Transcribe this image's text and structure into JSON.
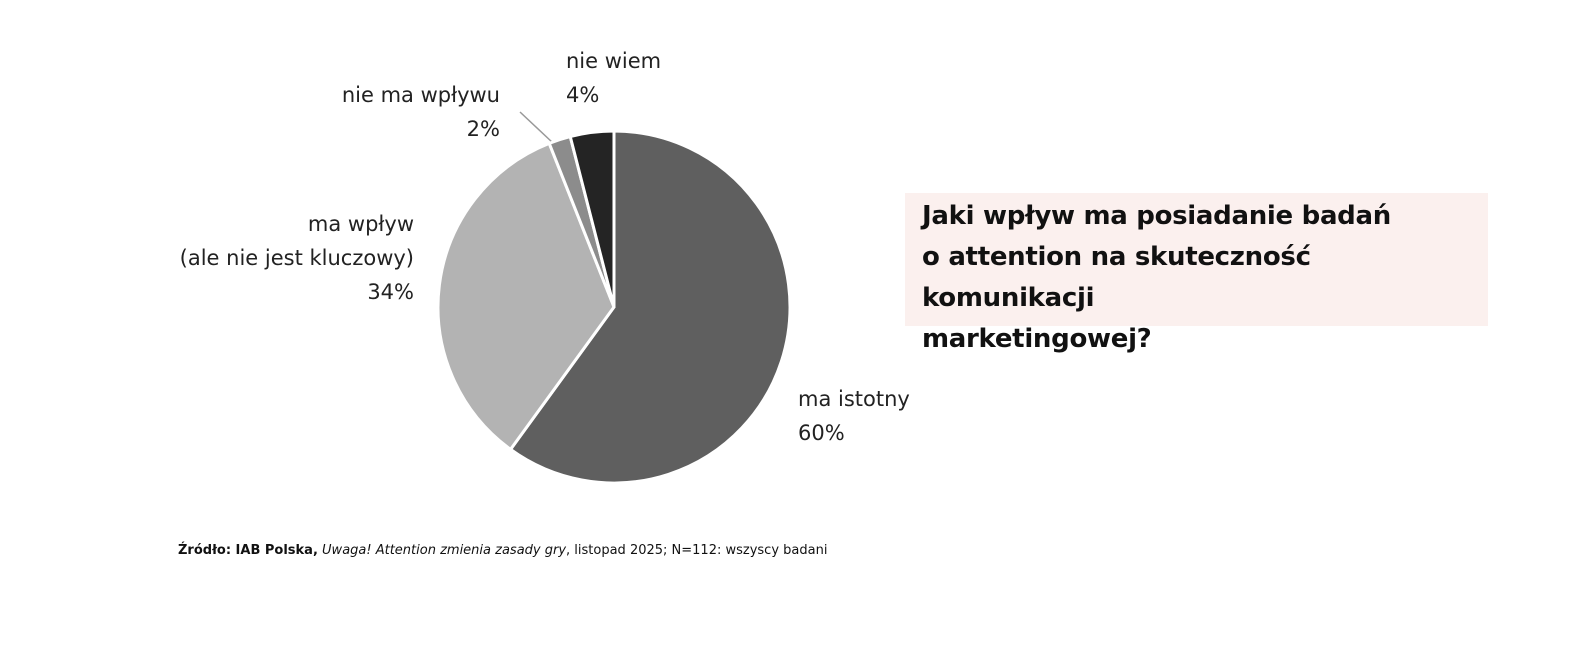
{
  "chart_data": {
    "type": "pie",
    "categories": [
      "ma istotny",
      "ma wpływ\n(ale nie jest kluczowy)",
      "nie ma wpływu",
      "nie wiem"
    ],
    "values": [
      60,
      34,
      2,
      4
    ],
    "value_labels": [
      "60%",
      "34%",
      "2%",
      "4%"
    ],
    "colors": [
      "#5f5f5f",
      "#b3b3b3",
      "#8c8c8c",
      "#242424"
    ]
  },
  "question": "Jaki wpływ ma posiadanie badań\no attention na skuteczność komunikacji\nmarketingowej?",
  "source": {
    "label": "Źródło: IAB Polska,",
    "publication": "Uwaga! Attention zmienia zasady gry",
    "details": ", listopad 2025; N=112: wszyscy badani"
  }
}
